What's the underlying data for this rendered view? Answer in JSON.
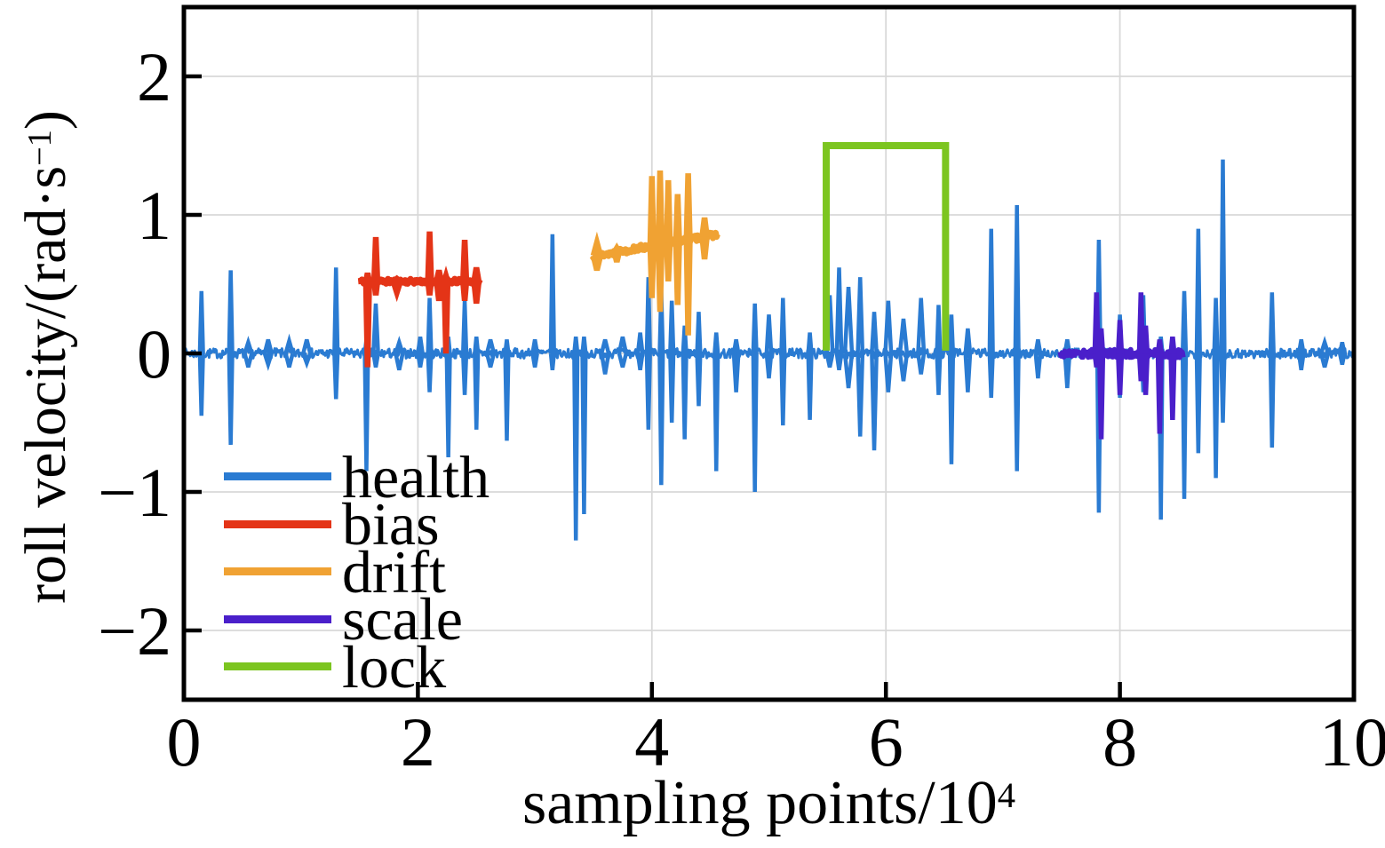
{
  "chart_data": {
    "type": "line",
    "title": "",
    "xlabel": {
      "text": "sampling points/10",
      "sup": "4"
    },
    "ylabel": {
      "pre": "roll velocity/(rad·s",
      "sup": "−1",
      "post": ")"
    },
    "xlim": [
      0,
      10
    ],
    "ylim": [
      -2.5,
      2.5
    ],
    "xticks": {
      "values": [
        0,
        2,
        4,
        6,
        8,
        10
      ],
      "labels": [
        "0",
        "2",
        "4",
        "6",
        "8",
        "10"
      ]
    },
    "yticks": {
      "values": [
        2,
        1,
        0,
        -1,
        -2
      ],
      "labels": [
        "2",
        "1",
        "0",
        "−1",
        "−2"
      ]
    },
    "grid": true,
    "legend_position": "lower-left",
    "colors": {
      "background": "#ffffff",
      "axis": "#000000",
      "grid": "#d8d8d8",
      "text": "#000000"
    },
    "series": [
      {
        "name": "health",
        "color": "#2a7bd2",
        "kind": "noisy",
        "seed": 7,
        "range": [
          0,
          10
        ],
        "base": 0,
        "noise_amp": 0.035,
        "line_width": 3,
        "spike_width": 4.5,
        "spikes": [
          [
            0.15,
            0.45,
            -0.45
          ],
          [
            0.4,
            0.6,
            -0.66
          ],
          [
            0.55,
            0.08,
            -0.1,
            0.03
          ],
          [
            0.72,
            0.1,
            -0.08,
            0.03
          ],
          [
            0.9,
            0.09,
            -0.1,
            0.03
          ],
          [
            1.05,
            0.1,
            -0.07,
            0.03
          ],
          [
            1.3,
            0.62,
            -0.33
          ],
          [
            1.56,
            0.1,
            -0.85
          ],
          [
            1.64,
            0.36,
            -0.1,
            0.02
          ],
          [
            1.84,
            0.08,
            -0.12,
            0.03
          ],
          [
            2.02,
            0.12,
            -0.1,
            0.02
          ],
          [
            2.1,
            0.4,
            -0.28
          ],
          [
            2.26,
            0.12,
            -0.75
          ],
          [
            2.4,
            0.38,
            -0.3
          ],
          [
            2.5,
            0.12,
            -0.55
          ],
          [
            2.62,
            0.1,
            -0.1,
            0.03
          ],
          [
            2.76,
            0.1,
            -0.63
          ],
          [
            3.0,
            0.1,
            -0.1,
            0.02
          ],
          [
            3.15,
            0.86,
            -0.12
          ],
          [
            3.35,
            0.12,
            -1.35
          ],
          [
            3.42,
            0.12,
            -1.16
          ],
          [
            3.6,
            0.1,
            -0.15,
            0.03
          ],
          [
            3.75,
            0.12,
            -0.1,
            0.03
          ],
          [
            3.9,
            0.15,
            -0.12,
            0.02
          ],
          [
            3.97,
            0.55,
            -0.55
          ],
          [
            4.08,
            0.46,
            -0.95
          ],
          [
            4.17,
            0.38,
            -0.5
          ],
          [
            4.28,
            0.2,
            -0.62
          ],
          [
            4.4,
            0.3,
            -0.38
          ],
          [
            4.55,
            0.15,
            -0.85
          ],
          [
            4.72,
            0.1,
            -0.28,
            0.02
          ],
          [
            4.88,
            0.36,
            -1.0
          ],
          [
            5.0,
            0.28,
            -0.18,
            0.02
          ],
          [
            5.12,
            0.4,
            -0.52
          ],
          [
            5.35,
            0.15,
            -0.48
          ],
          [
            5.52,
            0.42,
            -0.1,
            0.025
          ],
          [
            5.6,
            0.62,
            -0.12,
            0.02
          ],
          [
            5.68,
            0.48,
            -0.25,
            0.03
          ],
          [
            5.78,
            0.55,
            -0.6,
            0.02
          ],
          [
            5.9,
            0.3,
            -0.7,
            0.02
          ],
          [
            6.02,
            0.38,
            -0.28,
            0.025
          ],
          [
            6.15,
            0.25,
            -0.2,
            0.03
          ],
          [
            6.3,
            0.4,
            -0.15,
            0.025
          ],
          [
            6.45,
            0.35,
            -0.3
          ],
          [
            6.56,
            0.28,
            -0.8
          ],
          [
            6.7,
            0.18,
            -0.28,
            0.02
          ],
          [
            6.9,
            0.9,
            -0.32
          ],
          [
            7.12,
            1.07,
            -0.85
          ],
          [
            7.3,
            0.1,
            -0.18,
            0.02
          ],
          [
            7.55,
            0.1,
            -0.25,
            0.02
          ],
          [
            7.82,
            0.82,
            -1.15
          ],
          [
            8.0,
            0.28,
            -0.32
          ],
          [
            8.2,
            0.42,
            -0.28
          ],
          [
            8.35,
            0.12,
            -1.2
          ],
          [
            8.55,
            0.45,
            -1.05
          ],
          [
            8.67,
            0.9,
            -0.72
          ],
          [
            8.82,
            0.4,
            -0.9
          ],
          [
            8.88,
            1.4,
            -0.5
          ],
          [
            9.3,
            0.44,
            -0.68
          ],
          [
            9.55,
            0.1,
            -0.12,
            0.02
          ],
          [
            9.75,
            0.08,
            -0.1,
            0.03
          ],
          [
            9.9,
            0.08,
            -0.08,
            0.02
          ]
        ]
      },
      {
        "name": "bias",
        "color": "#e43417",
        "kind": "noisy",
        "seed": 11,
        "range": [
          1.49,
          2.53
        ],
        "base": 0.52,
        "noise_amp": 0.018,
        "line_width": 7,
        "spike_width": 6.5,
        "spikes": [
          [
            1.57,
            0.58,
            -0.1
          ],
          [
            1.64,
            0.84,
            0.42
          ],
          [
            1.82,
            0.54,
            0.44,
            0.03
          ],
          [
            2.1,
            0.88,
            0.42
          ],
          [
            2.18,
            0.6,
            0.38,
            0.02
          ],
          [
            2.24,
            0.56,
            0.0
          ],
          [
            2.4,
            0.82,
            0.38
          ],
          [
            2.5,
            0.62,
            0.36,
            0.02
          ]
        ]
      },
      {
        "name": "drift",
        "color": "#f0a233",
        "kind": "noisy",
        "seed": 13,
        "range": [
          3.49,
          4.56
        ],
        "base_start": 0.7,
        "base_end": 0.86,
        "noise_amp": 0.022,
        "line_width": 7,
        "spike_width": 6.5,
        "spikes": [
          [
            3.53,
            0.8,
            0.6,
            0.03
          ],
          [
            3.7,
            0.76,
            0.66,
            0.02
          ],
          [
            4.0,
            1.28,
            0.4
          ],
          [
            4.07,
            1.32,
            0.3
          ],
          [
            4.14,
            1.25,
            0.52
          ],
          [
            4.22,
            1.15,
            0.35
          ],
          [
            4.31,
            1.3,
            0.13
          ],
          [
            4.45,
            0.98,
            0.68,
            0.02
          ]
        ]
      },
      {
        "name": "scale",
        "color": "#4a1fca",
        "kind": "noisy",
        "seed": 17,
        "range": [
          7.49,
          8.54
        ],
        "base": 0,
        "noise_amp": 0.03,
        "line_width": 6,
        "spike_width": 5.5,
        "spikes": [
          [
            7.8,
            0.44,
            -0.1
          ],
          [
            7.84,
            0.18,
            -0.62
          ],
          [
            8.0,
            0.24,
            -0.3
          ],
          [
            8.18,
            0.44,
            -0.2
          ],
          [
            8.22,
            0.2,
            -0.3
          ],
          [
            8.34,
            0.1,
            -0.58
          ],
          [
            8.45,
            0.12,
            -0.48
          ]
        ]
      },
      {
        "name": "lock",
        "color": "#7cc520",
        "kind": "poly",
        "line_width": 8,
        "points": [
          [
            5.49,
            0.02
          ],
          [
            5.49,
            1.5
          ],
          [
            6.51,
            1.5
          ],
          [
            6.51,
            0.02
          ]
        ]
      }
    ]
  }
}
